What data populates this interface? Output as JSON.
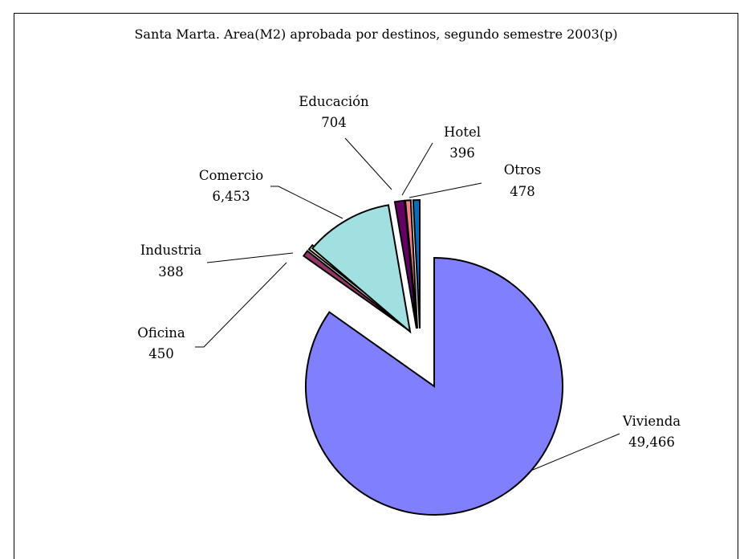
{
  "chart_data": {
    "type": "pie",
    "title": "Santa Marta. Area(M2) aprobada por destinos, segundo semestre 2003(p)",
    "slices": [
      {
        "name": "Vivienda",
        "value": 49466,
        "value_label": "49,466",
        "color": "#8080ff"
      },
      {
        "name": "Oficina",
        "value": 450,
        "value_label": "450",
        "color": "#993366"
      },
      {
        "name": "Industria",
        "value": 388,
        "value_label": "388",
        "color": "#ffffcc"
      },
      {
        "name": "Comercio",
        "value": 6453,
        "value_label": "6,453",
        "color": "#a0e0e0"
      },
      {
        "name": "Educación",
        "value": 704,
        "value_label": "704",
        "color": "#660066"
      },
      {
        "name": "Hotel",
        "value": 396,
        "value_label": "396",
        "color": "#ff8080"
      },
      {
        "name": "Otros",
        "value": 478,
        "value_label": "478",
        "color": "#0070c0"
      }
    ],
    "legend": "none",
    "exploded": true
  }
}
